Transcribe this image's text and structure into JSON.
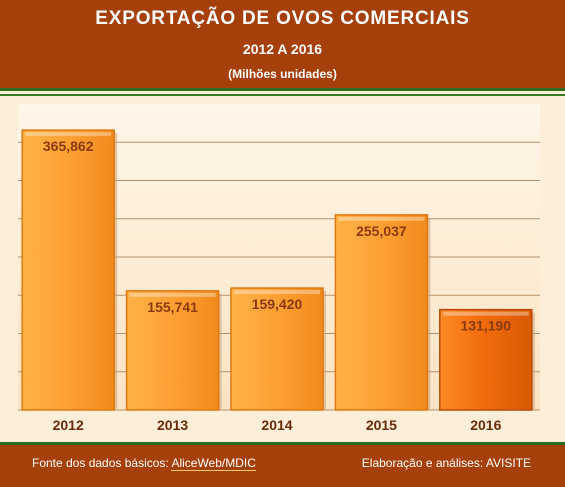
{
  "header": {
    "title": "EXPORTAÇÃO DE OVOS COMERCIAIS",
    "subtitle": "2012 A 2016",
    "unit": "(Milhões unidades)"
  },
  "footer": {
    "source_prefix": "Fonte dos dados básicos: ",
    "source_name": "AliceWeb/MDIC",
    "credit": "Elaboração e análises: AVISITE"
  },
  "colors": {
    "bar": "#ffa033",
    "bar_dark": "#e07810",
    "highlight_bar": "#f06a0a",
    "gridline": "#b8906a",
    "header_bg": "#a6400a",
    "label": "#8a3a10"
  },
  "chart_data": {
    "type": "bar",
    "categories": [
      "2012",
      "2013",
      "2014",
      "2015",
      "2016"
    ],
    "values": [
      365862,
      155741,
      159420,
      255037,
      131190
    ],
    "value_labels": [
      "365,862",
      "155,741",
      "159,420",
      "255,037",
      "131,190"
    ],
    "ylim": [
      0,
      400000
    ],
    "grid": true,
    "highlight_index": 4
  }
}
